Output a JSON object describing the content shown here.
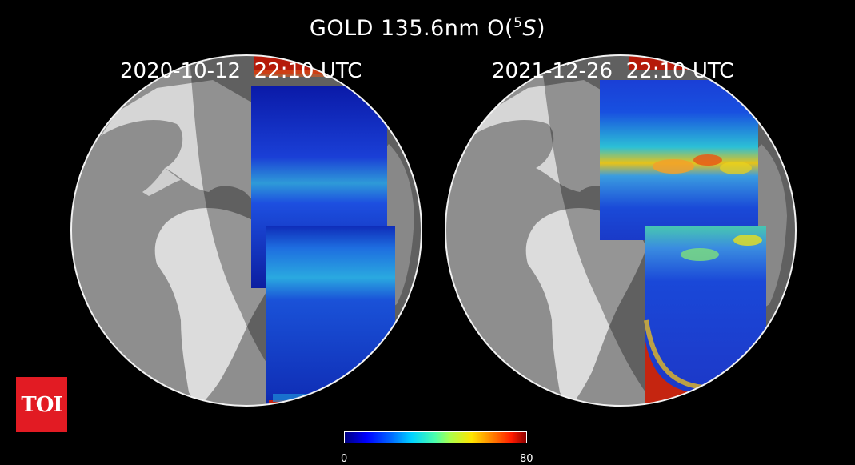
{
  "title": {
    "main": "GOLD 135.6nm O(",
    "superscript": "5",
    "state": "S",
    "close": ")"
  },
  "panels": [
    {
      "timestamp": "2020-10-12  22:10 UTC"
    },
    {
      "timestamp": "2021-12-26  22:10 UTC"
    }
  ],
  "colorbar": {
    "min": "0",
    "max": "80",
    "colormap": "jet"
  },
  "logo": {
    "text": "TOI",
    "color": "#e21b23"
  },
  "colors": {
    "background": "#000000",
    "globe_ocean": "#8e8e8e",
    "globe_land": "#d9d9d9",
    "night_shade": "#5a5a5a"
  }
}
